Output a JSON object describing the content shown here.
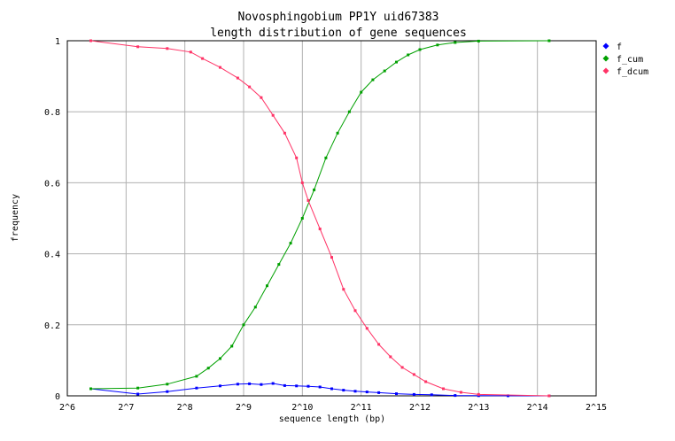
{
  "chart_data": {
    "type": "line",
    "title": "Novosphingobium PP1Y uid67383",
    "subtitle": "length distribution of gene sequences",
    "xlabel": "sequence length (bp)",
    "ylabel": "frequency",
    "x_scale": "log2",
    "xlim_log2": [
      6,
      15
    ],
    "ylim": [
      0,
      1
    ],
    "x_ticks": [
      {
        "v": 6,
        "label": "2^6"
      },
      {
        "v": 7,
        "label": "2^7"
      },
      {
        "v": 8,
        "label": "2^8"
      },
      {
        "v": 9,
        "label": "2^9"
      },
      {
        "v": 10,
        "label": "2^10"
      },
      {
        "v": 11,
        "label": "2^11"
      },
      {
        "v": 12,
        "label": "2^12"
      },
      {
        "v": 13,
        "label": "2^13"
      },
      {
        "v": 14,
        "label": "2^14"
      },
      {
        "v": 15,
        "label": "2^15"
      }
    ],
    "y_ticks": [
      {
        "v": 0,
        "label": "0"
      },
      {
        "v": 0.2,
        "label": "0.2"
      },
      {
        "v": 0.4,
        "label": "0.4"
      },
      {
        "v": 0.6,
        "label": "0.6"
      },
      {
        "v": 0.8,
        "label": "0.8"
      },
      {
        "v": 1,
        "label": "1"
      }
    ],
    "grid": true,
    "legend_position": "top-right",
    "series": [
      {
        "name": "f",
        "color": "#0000ff",
        "points": [
          [
            6.4,
            0.02
          ],
          [
            7.2,
            0.005
          ],
          [
            7.7,
            0.012
          ],
          [
            8.2,
            0.022
          ],
          [
            8.6,
            0.028
          ],
          [
            8.9,
            0.033
          ],
          [
            9.1,
            0.034
          ],
          [
            9.3,
            0.032
          ],
          [
            9.5,
            0.035
          ],
          [
            9.7,
            0.029
          ],
          [
            9.9,
            0.028
          ],
          [
            10.1,
            0.027
          ],
          [
            10.3,
            0.025
          ],
          [
            10.5,
            0.02
          ],
          [
            10.7,
            0.016
          ],
          [
            10.9,
            0.013
          ],
          [
            11.1,
            0.011
          ],
          [
            11.3,
            0.009
          ],
          [
            11.6,
            0.006
          ],
          [
            11.9,
            0.004
          ],
          [
            12.2,
            0.003
          ],
          [
            12.6,
            0.001
          ],
          [
            13.0,
            0.0005
          ],
          [
            13.5,
            0.0003
          ],
          [
            14.2,
            0
          ]
        ]
      },
      {
        "name": "f_cum",
        "color": "#00a000",
        "points": [
          [
            6.4,
            0.02
          ],
          [
            7.2,
            0.022
          ],
          [
            7.7,
            0.033
          ],
          [
            8.2,
            0.055
          ],
          [
            8.4,
            0.078
          ],
          [
            8.6,
            0.105
          ],
          [
            8.8,
            0.14
          ],
          [
            9.0,
            0.2
          ],
          [
            9.2,
            0.25
          ],
          [
            9.4,
            0.31
          ],
          [
            9.6,
            0.37
          ],
          [
            9.8,
            0.43
          ],
          [
            10.0,
            0.5
          ],
          [
            10.2,
            0.58
          ],
          [
            10.4,
            0.67
          ],
          [
            10.6,
            0.74
          ],
          [
            10.8,
            0.8
          ],
          [
            11.0,
            0.855
          ],
          [
            11.2,
            0.89
          ],
          [
            11.4,
            0.915
          ],
          [
            11.6,
            0.94
          ],
          [
            11.8,
            0.96
          ],
          [
            12.0,
            0.975
          ],
          [
            12.3,
            0.988
          ],
          [
            12.6,
            0.995
          ],
          [
            13.0,
            0.999
          ],
          [
            14.2,
            1.0
          ]
        ]
      },
      {
        "name": "f_dcum",
        "color": "#ff3366",
        "points": [
          [
            6.4,
            1.0
          ],
          [
            7.2,
            0.983
          ],
          [
            7.7,
            0.978
          ],
          [
            8.1,
            0.968
          ],
          [
            8.3,
            0.95
          ],
          [
            8.6,
            0.925
          ],
          [
            8.9,
            0.895
          ],
          [
            9.1,
            0.87
          ],
          [
            9.3,
            0.84
          ],
          [
            9.5,
            0.79
          ],
          [
            9.7,
            0.74
          ],
          [
            9.9,
            0.67
          ],
          [
            10.0,
            0.6
          ],
          [
            10.1,
            0.55
          ],
          [
            10.3,
            0.47
          ],
          [
            10.5,
            0.39
          ],
          [
            10.7,
            0.3
          ],
          [
            10.9,
            0.24
          ],
          [
            11.1,
            0.19
          ],
          [
            11.3,
            0.145
          ],
          [
            11.5,
            0.11
          ],
          [
            11.7,
            0.08
          ],
          [
            11.9,
            0.06
          ],
          [
            12.1,
            0.04
          ],
          [
            12.4,
            0.02
          ],
          [
            12.7,
            0.01
          ],
          [
            13.0,
            0.004
          ],
          [
            14.2,
            0.0
          ]
        ]
      }
    ]
  }
}
